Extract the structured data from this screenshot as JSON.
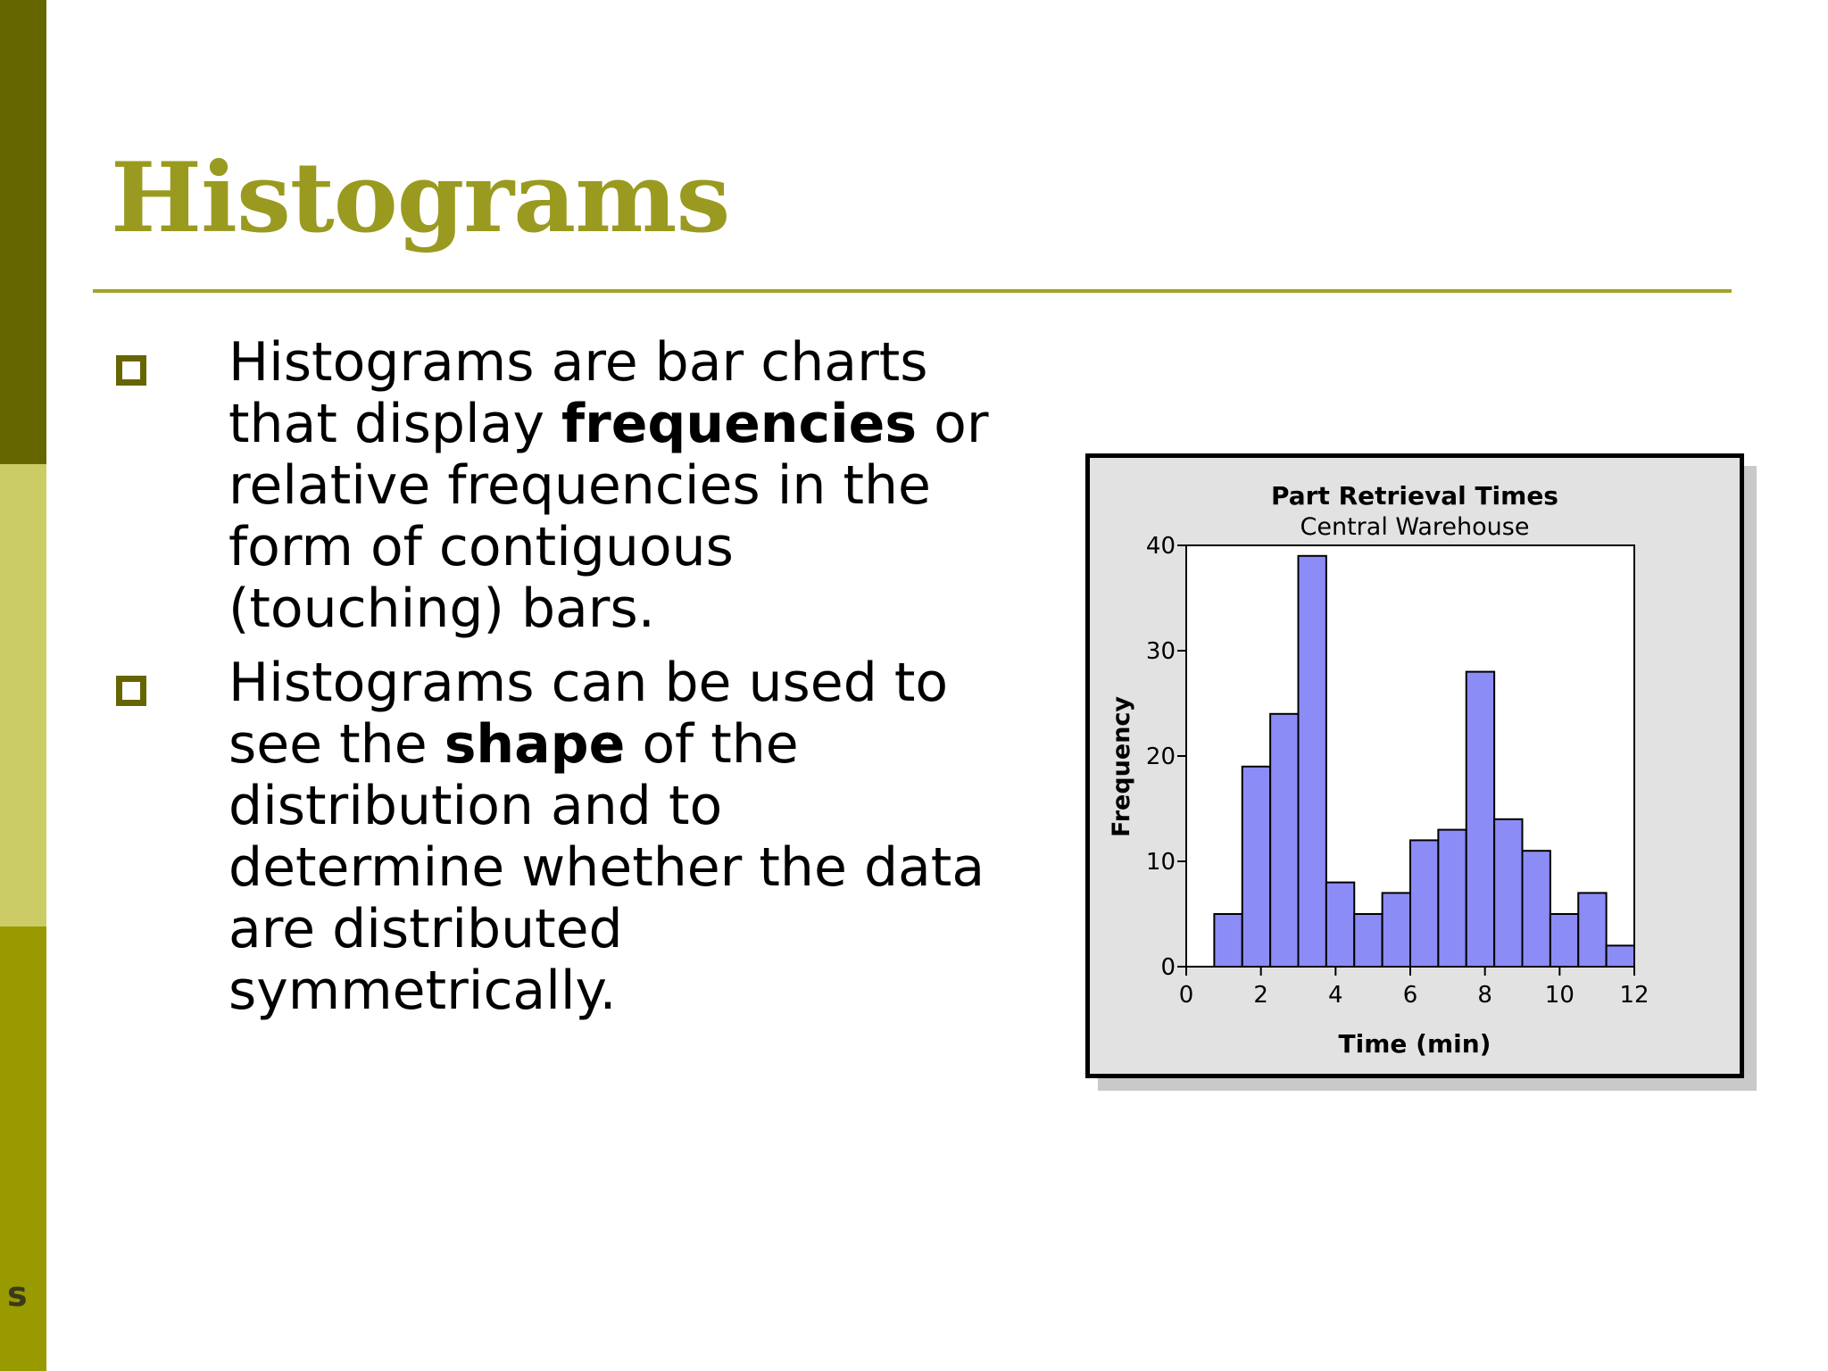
{
  "colors": {
    "sidebar_dark": "#666600",
    "sidebar_light": "#cccc66",
    "sidebar_mid": "#999900",
    "title": "#9a9a20",
    "rule": "#a3a322",
    "bullet": "#666600",
    "bar_fill": "#8c8cf6",
    "bar_stroke": "#000000"
  },
  "corner_mark": "s",
  "slide": {
    "title": "Histograms",
    "bullets": [
      {
        "icon": "hollow-square-bullet-icon",
        "parts": [
          {
            "text": "Histograms are bar charts that display ",
            "bold": false
          },
          {
            "text": "frequencies",
            "bold": true
          },
          {
            "text": " or relative frequencies in the form of contiguous (touching) bars.",
            "bold": false
          }
        ]
      },
      {
        "icon": "hollow-square-bullet-icon",
        "parts": [
          {
            "text": "Histograms can be used to see the ",
            "bold": false
          },
          {
            "text": "shape",
            "bold": true
          },
          {
            "text": " of the distribution and to determine whether the data are distributed symmetrically.",
            "bold": false
          }
        ]
      }
    ]
  },
  "chart_data": {
    "type": "bar",
    "title": "Part Retrieval Times",
    "subtitle": "Central Warehouse",
    "xlabel": "Time (min)",
    "ylabel": "Frequency",
    "xlim": [
      0,
      12
    ],
    "ylim": [
      0,
      40
    ],
    "xticks": [
      0,
      2,
      4,
      6,
      8,
      10,
      12
    ],
    "yticks": [
      0,
      10,
      20,
      30,
      40
    ],
    "bin_width": 0.75,
    "bins": [
      {
        "start": 0.75,
        "end": 1.5,
        "value": 5
      },
      {
        "start": 1.5,
        "end": 2.25,
        "value": 19
      },
      {
        "start": 2.25,
        "end": 3.0,
        "value": 24
      },
      {
        "start": 3.0,
        "end": 3.75,
        "value": 39
      },
      {
        "start": 3.75,
        "end": 4.5,
        "value": 8
      },
      {
        "start": 4.5,
        "end": 5.25,
        "value": 5
      },
      {
        "start": 5.25,
        "end": 6.0,
        "value": 7
      },
      {
        "start": 6.0,
        "end": 6.75,
        "value": 12
      },
      {
        "start": 6.75,
        "end": 7.5,
        "value": 13
      },
      {
        "start": 7.5,
        "end": 8.25,
        "value": 28
      },
      {
        "start": 8.25,
        "end": 9.0,
        "value": 14
      },
      {
        "start": 9.0,
        "end": 9.75,
        "value": 11
      },
      {
        "start": 9.75,
        "end": 10.5,
        "value": 5
      },
      {
        "start": 10.5,
        "end": 11.25,
        "value": 7
      },
      {
        "start": 11.25,
        "end": 12.0,
        "value": 2
      }
    ],
    "grid": false,
    "legend": "none"
  }
}
